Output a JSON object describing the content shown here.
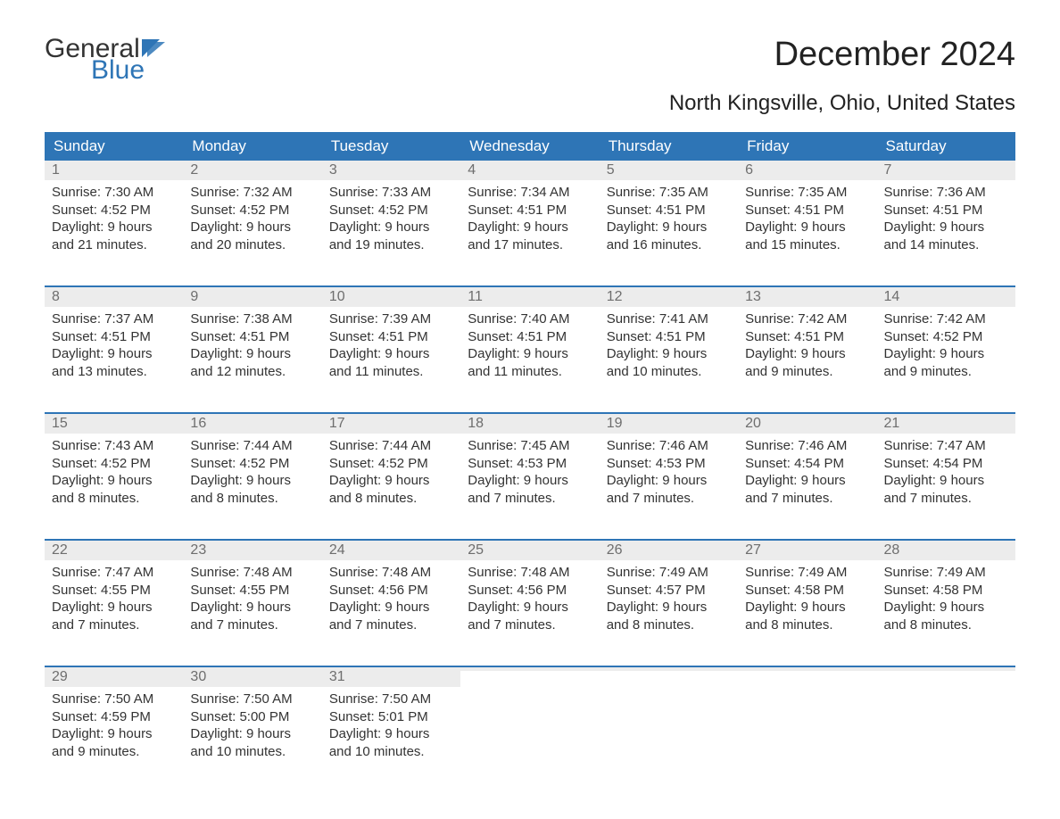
{
  "logo": {
    "general": "General",
    "blue": "Blue"
  },
  "title": "December 2024",
  "subtitle": "North Kingsville, Ohio, United States",
  "colors": {
    "header_bg": "#2e75b6",
    "header_text": "#ffffff",
    "daynum_bg": "#ececec",
    "daynum_text": "#6e6e6e",
    "body_text": "#333333",
    "week_border": "#2e75b6",
    "page_bg": "#ffffff",
    "logo_blue": "#2e75b6"
  },
  "typography": {
    "title_fontsize": 38,
    "subtitle_fontsize": 24,
    "header_fontsize": 17,
    "daynum_fontsize": 16,
    "body_fontsize": 15,
    "logo_fontsize": 30
  },
  "weekdays": [
    "Sunday",
    "Monday",
    "Tuesday",
    "Wednesday",
    "Thursday",
    "Friday",
    "Saturday"
  ],
  "weeks": [
    [
      {
        "n": "1",
        "sunrise": "Sunrise: 7:30 AM",
        "sunset": "Sunset: 4:52 PM",
        "d1": "Daylight: 9 hours",
        "d2": "and 21 minutes."
      },
      {
        "n": "2",
        "sunrise": "Sunrise: 7:32 AM",
        "sunset": "Sunset: 4:52 PM",
        "d1": "Daylight: 9 hours",
        "d2": "and 20 minutes."
      },
      {
        "n": "3",
        "sunrise": "Sunrise: 7:33 AM",
        "sunset": "Sunset: 4:52 PM",
        "d1": "Daylight: 9 hours",
        "d2": "and 19 minutes."
      },
      {
        "n": "4",
        "sunrise": "Sunrise: 7:34 AM",
        "sunset": "Sunset: 4:51 PM",
        "d1": "Daylight: 9 hours",
        "d2": "and 17 minutes."
      },
      {
        "n": "5",
        "sunrise": "Sunrise: 7:35 AM",
        "sunset": "Sunset: 4:51 PM",
        "d1": "Daylight: 9 hours",
        "d2": "and 16 minutes."
      },
      {
        "n": "6",
        "sunrise": "Sunrise: 7:35 AM",
        "sunset": "Sunset: 4:51 PM",
        "d1": "Daylight: 9 hours",
        "d2": "and 15 minutes."
      },
      {
        "n": "7",
        "sunrise": "Sunrise: 7:36 AM",
        "sunset": "Sunset: 4:51 PM",
        "d1": "Daylight: 9 hours",
        "d2": "and 14 minutes."
      }
    ],
    [
      {
        "n": "8",
        "sunrise": "Sunrise: 7:37 AM",
        "sunset": "Sunset: 4:51 PM",
        "d1": "Daylight: 9 hours",
        "d2": "and 13 minutes."
      },
      {
        "n": "9",
        "sunrise": "Sunrise: 7:38 AM",
        "sunset": "Sunset: 4:51 PM",
        "d1": "Daylight: 9 hours",
        "d2": "and 12 minutes."
      },
      {
        "n": "10",
        "sunrise": "Sunrise: 7:39 AM",
        "sunset": "Sunset: 4:51 PM",
        "d1": "Daylight: 9 hours",
        "d2": "and 11 minutes."
      },
      {
        "n": "11",
        "sunrise": "Sunrise: 7:40 AM",
        "sunset": "Sunset: 4:51 PM",
        "d1": "Daylight: 9 hours",
        "d2": "and 11 minutes."
      },
      {
        "n": "12",
        "sunrise": "Sunrise: 7:41 AM",
        "sunset": "Sunset: 4:51 PM",
        "d1": "Daylight: 9 hours",
        "d2": "and 10 minutes."
      },
      {
        "n": "13",
        "sunrise": "Sunrise: 7:42 AM",
        "sunset": "Sunset: 4:51 PM",
        "d1": "Daylight: 9 hours",
        "d2": "and 9 minutes."
      },
      {
        "n": "14",
        "sunrise": "Sunrise: 7:42 AM",
        "sunset": "Sunset: 4:52 PM",
        "d1": "Daylight: 9 hours",
        "d2": "and 9 minutes."
      }
    ],
    [
      {
        "n": "15",
        "sunrise": "Sunrise: 7:43 AM",
        "sunset": "Sunset: 4:52 PM",
        "d1": "Daylight: 9 hours",
        "d2": "and 8 minutes."
      },
      {
        "n": "16",
        "sunrise": "Sunrise: 7:44 AM",
        "sunset": "Sunset: 4:52 PM",
        "d1": "Daylight: 9 hours",
        "d2": "and 8 minutes."
      },
      {
        "n": "17",
        "sunrise": "Sunrise: 7:44 AM",
        "sunset": "Sunset: 4:52 PM",
        "d1": "Daylight: 9 hours",
        "d2": "and 8 minutes."
      },
      {
        "n": "18",
        "sunrise": "Sunrise: 7:45 AM",
        "sunset": "Sunset: 4:53 PM",
        "d1": "Daylight: 9 hours",
        "d2": "and 7 minutes."
      },
      {
        "n": "19",
        "sunrise": "Sunrise: 7:46 AM",
        "sunset": "Sunset: 4:53 PM",
        "d1": "Daylight: 9 hours",
        "d2": "and 7 minutes."
      },
      {
        "n": "20",
        "sunrise": "Sunrise: 7:46 AM",
        "sunset": "Sunset: 4:54 PM",
        "d1": "Daylight: 9 hours",
        "d2": "and 7 minutes."
      },
      {
        "n": "21",
        "sunrise": "Sunrise: 7:47 AM",
        "sunset": "Sunset: 4:54 PM",
        "d1": "Daylight: 9 hours",
        "d2": "and 7 minutes."
      }
    ],
    [
      {
        "n": "22",
        "sunrise": "Sunrise: 7:47 AM",
        "sunset": "Sunset: 4:55 PM",
        "d1": "Daylight: 9 hours",
        "d2": "and 7 minutes."
      },
      {
        "n": "23",
        "sunrise": "Sunrise: 7:48 AM",
        "sunset": "Sunset: 4:55 PM",
        "d1": "Daylight: 9 hours",
        "d2": "and 7 minutes."
      },
      {
        "n": "24",
        "sunrise": "Sunrise: 7:48 AM",
        "sunset": "Sunset: 4:56 PM",
        "d1": "Daylight: 9 hours",
        "d2": "and 7 minutes."
      },
      {
        "n": "25",
        "sunrise": "Sunrise: 7:48 AM",
        "sunset": "Sunset: 4:56 PM",
        "d1": "Daylight: 9 hours",
        "d2": "and 7 minutes."
      },
      {
        "n": "26",
        "sunrise": "Sunrise: 7:49 AM",
        "sunset": "Sunset: 4:57 PM",
        "d1": "Daylight: 9 hours",
        "d2": "and 8 minutes."
      },
      {
        "n": "27",
        "sunrise": "Sunrise: 7:49 AM",
        "sunset": "Sunset: 4:58 PM",
        "d1": "Daylight: 9 hours",
        "d2": "and 8 minutes."
      },
      {
        "n": "28",
        "sunrise": "Sunrise: 7:49 AM",
        "sunset": "Sunset: 4:58 PM",
        "d1": "Daylight: 9 hours",
        "d2": "and 8 minutes."
      }
    ],
    [
      {
        "n": "29",
        "sunrise": "Sunrise: 7:50 AM",
        "sunset": "Sunset: 4:59 PM",
        "d1": "Daylight: 9 hours",
        "d2": "and 9 minutes."
      },
      {
        "n": "30",
        "sunrise": "Sunrise: 7:50 AM",
        "sunset": "Sunset: 5:00 PM",
        "d1": "Daylight: 9 hours",
        "d2": "and 10 minutes."
      },
      {
        "n": "31",
        "sunrise": "Sunrise: 7:50 AM",
        "sunset": "Sunset: 5:01 PM",
        "d1": "Daylight: 9 hours",
        "d2": "and 10 minutes."
      },
      {
        "empty": true
      },
      {
        "empty": true
      },
      {
        "empty": true
      },
      {
        "empty": true
      }
    ]
  ]
}
